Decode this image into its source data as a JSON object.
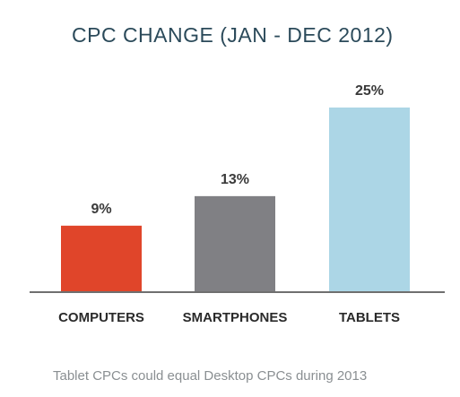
{
  "chart_data": {
    "type": "bar",
    "title": "CPC CHANGE (JAN - DEC 2012)",
    "categories": [
      "COMPUTERS",
      "SMARTPHONES",
      "TABLETS"
    ],
    "values": [
      9,
      13,
      25
    ],
    "value_labels": [
      "9%",
      "13%",
      "25%"
    ],
    "unit": "%",
    "ylim": [
      0,
      29
    ],
    "grid": false,
    "bar_colors": [
      "#e0452a",
      "#808084",
      "#acd6e6"
    ],
    "baseline_color": "#6f6f6f"
  },
  "caption": "Tablet CPCs could equal Desktop CPCs during 2013"
}
